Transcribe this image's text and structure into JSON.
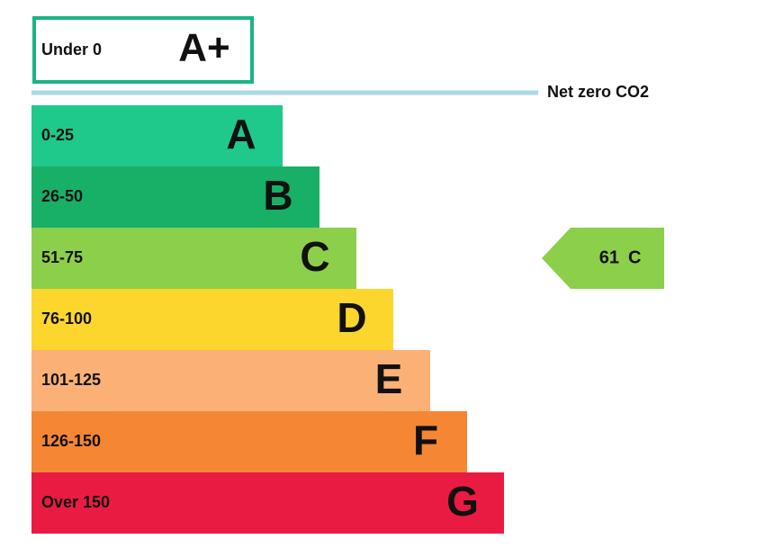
{
  "top": {
    "range": "Under 0",
    "letter": "A+",
    "color": "#1bb585"
  },
  "net_zero": {
    "label": "Net zero CO2",
    "color": "#a9d9e6"
  },
  "bands": [
    {
      "range": "0-25",
      "letter": "A",
      "color": "#1ec98b"
    },
    {
      "range": "26-50",
      "letter": "B",
      "color": "#18b067"
    },
    {
      "range": "51-75",
      "letter": "C",
      "color": "#8ccf4a"
    },
    {
      "range": "76-100",
      "letter": "D",
      "color": "#fcd62c"
    },
    {
      "range": "101-125",
      "letter": "E",
      "color": "#fbb176"
    },
    {
      "range": "126-150",
      "letter": "F",
      "color": "#f58634"
    },
    {
      "range": "Over 150",
      "letter": "G",
      "color": "#ea1b42"
    }
  ],
  "current": {
    "score": "61",
    "letter": "C",
    "color": "#8ccf4a"
  }
}
